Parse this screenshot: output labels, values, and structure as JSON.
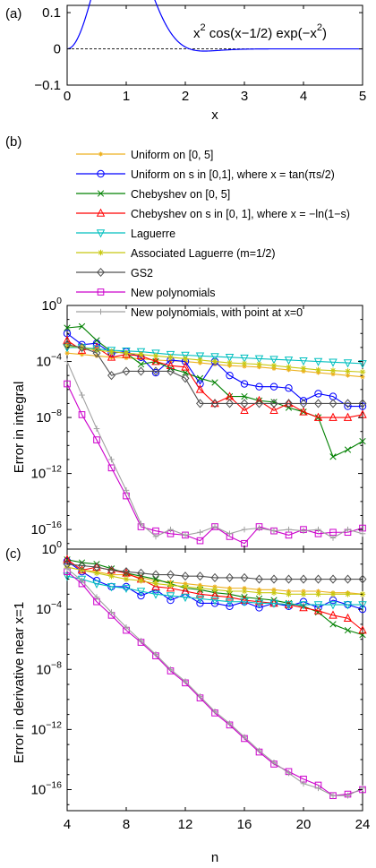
{
  "chart_data": [
    {
      "panel_label": "(a)",
      "type": "line",
      "annotation": {
        "base": "x",
        "exp1": "2",
        "mid": " cos(x−1/2) exp(−x",
        "exp2": "2",
        "end": ")"
      },
      "xlabel": "x",
      "xlim": [
        0,
        5
      ],
      "ylim": [
        -0.1,
        0.12
      ],
      "xticks": [
        "0",
        "1",
        "2",
        "3",
        "4",
        "5"
      ],
      "yticks": [
        "0.1",
        "0",
        "−0.1"
      ],
      "reference_line": {
        "y": 0,
        "style": "dashed"
      },
      "function": "x^2*cos(x-0.5)*exp(-x^2)",
      "color": "#0000ff"
    },
    {
      "panel_label": "(b)",
      "type": "line",
      "yscale": "log",
      "ylabel": "Error in integral",
      "xlim": [
        4,
        24
      ],
      "ylim_exp": [
        -17.4,
        0
      ],
      "ytick_exps": [
        0,
        -4,
        -8,
        -12,
        -16
      ],
      "x": [
        4,
        5,
        6,
        7,
        8,
        9,
        10,
        11,
        12,
        13,
        14,
        15,
        16,
        17,
        18,
        19,
        20,
        21,
        22,
        23,
        24
      ],
      "series_log10": [
        {
          "name": "Uniform on [0, 5]",
          "color": "#edb120",
          "marker": "star",
          "values": [
            -3.4,
            -3.5,
            -3.6,
            -3.7,
            -3.75,
            -3.8,
            -3.9,
            -3.95,
            -4.0,
            -4.1,
            -4.2,
            -4.3,
            -4.35,
            -4.4,
            -4.5,
            -4.6,
            -4.7,
            -4.8,
            -4.9,
            -5.0,
            -5.1
          ]
        },
        {
          "name": "Uniform on s in [0,1], where x = tan(πs/2)",
          "color": "#0000ff",
          "marker": "circle",
          "values": [
            -2.0,
            -2.8,
            -2.7,
            -3.4,
            -3.3,
            -3.7,
            -4.8,
            -3.9,
            -4.0,
            -5.6,
            -4.0,
            -5.0,
            -5.6,
            -5.8,
            -5.8,
            -5.9,
            -6.8,
            -6.3,
            -6.5,
            -7.2,
            -7.2
          ]
        },
        {
          "name": "Chebyshev on [0, 5]",
          "color": "#008000",
          "marker": "x",
          "values": [
            -1.6,
            -1.5,
            -2.5,
            -3.3,
            -3.4,
            -4.2,
            -4.0,
            -4.5,
            -4.8,
            -5.2,
            -5.5,
            -6.5,
            -6.5,
            -6.8,
            -6.9,
            -7.3,
            -7.6,
            -8.0,
            -10.8,
            -10.3,
            -9.7
          ]
        },
        {
          "name": "Chebyshev on s in [0, 1], where x = −ln(1−s)",
          "color": "#ff0000",
          "marker": "triangle",
          "values": [
            -2.5,
            -3.2,
            -3.0,
            -3.7,
            -3.5,
            -3.6,
            -4.0,
            -4.3,
            -4.4,
            -6.0,
            -7.0,
            -6.5,
            -7.5,
            -6.8,
            -7.5,
            -7.0,
            -7.6,
            -8.0,
            -8.0,
            -8.0,
            -7.8
          ]
        },
        {
          "name": "Laguerre",
          "color": "#00bfbf",
          "marker": "triangle-down",
          "values": [
            -3.0,
            -3.0,
            -3.1,
            -3.2,
            -3.25,
            -3.3,
            -3.4,
            -3.5,
            -3.55,
            -3.6,
            -3.65,
            -3.7,
            -3.75,
            -3.8,
            -3.85,
            -3.9,
            -3.95,
            -4.0,
            -4.05,
            -4.1,
            -4.15
          ]
        },
        {
          "name": "Associated Laguerre (m=1/2)",
          "color": "#c8c810",
          "marker": "asterisk",
          "values": [
            -2.9,
            -3.0,
            -3.2,
            -3.3,
            -3.4,
            -3.5,
            -3.6,
            -3.7,
            -3.8,
            -3.9,
            -4.0,
            -4.1,
            -4.15,
            -4.2,
            -4.3,
            -4.4,
            -4.5,
            -4.6,
            -4.65,
            -4.7,
            -4.75
          ]
        },
        {
          "name": "GS2",
          "color": "#505050",
          "marker": "diamond",
          "values": [
            -2.8,
            -3.0,
            -3.4,
            -5.0,
            -4.7,
            -4.7,
            -4.7,
            -4.7,
            -5.2,
            -7.0,
            -7.0,
            -7.0,
            -7.0,
            -7.0,
            -7.0,
            -7.0,
            -7.0,
            -7.0,
            -7.0,
            -7.0,
            -7.0
          ]
        },
        {
          "name": "New polynomials",
          "color": "#cc00cc",
          "marker": "square",
          "values": [
            -5.6,
            -7.8,
            -9.6,
            -11.6,
            -13.6,
            -15.8,
            -16.1,
            -16.3,
            -16.4,
            -16.8,
            -15.8,
            -16.5,
            -17.0,
            -15.8,
            -16.1,
            -16.4,
            -16.0,
            -16.3,
            -16.2,
            -16.2,
            -15.9
          ]
        },
        {
          "name": "New polynomials, with point at x=0",
          "color": "#a0a0a0",
          "marker": "plus",
          "values": [
            -4.0,
            -6.4,
            -8.8,
            -11.0,
            -13.2,
            -15.6,
            -16.5,
            -16.0,
            -16.4,
            -16.2,
            -15.8,
            -16.3,
            -16.0,
            -15.9,
            -16.1,
            -16.0,
            -16.1,
            -16.0,
            -16.6,
            -16.0,
            -16.3
          ]
        }
      ]
    },
    {
      "panel_label": "(c)",
      "type": "line",
      "yscale": "log",
      "ylabel": "Error in derivative near x=1",
      "xlabel": "n",
      "xlim": [
        4,
        24
      ],
      "xticks": [
        "4",
        "8",
        "12",
        "16",
        "20",
        "24"
      ],
      "ylim_exp": [
        -17.4,
        0
      ],
      "ytick_exps": [
        0,
        -4,
        -8,
        -12,
        -16
      ],
      "x": [
        4,
        5,
        6,
        7,
        8,
        9,
        10,
        11,
        12,
        13,
        14,
        15,
        16,
        17,
        18,
        19,
        20,
        21,
        22,
        23,
        24
      ],
      "series_log10": [
        {
          "name": "Uniform on [0, 5]",
          "color": "#edb120",
          "marker": "star",
          "values": [
            -1.2,
            -1.4,
            -1.5,
            -1.7,
            -1.7,
            -1.9,
            -2.1,
            -2.2,
            -2.3,
            -2.4,
            -2.5,
            -2.6,
            -2.6,
            -2.7,
            -2.7,
            -2.8,
            -2.8,
            -2.8,
            -2.9,
            -2.9,
            -3.0
          ]
        },
        {
          "name": "Uniform on s in [0,1], where x = tan(πs/2)",
          "color": "#0000ff",
          "marker": "circle",
          "values": [
            -0.8,
            -1.5,
            -2.1,
            -2.5,
            -2.5,
            -3.1,
            -2.7,
            -3.4,
            -3.0,
            -3.6,
            -3.6,
            -3.8,
            -3.5,
            -3.9,
            -3.6,
            -3.8,
            -3.5,
            -3.9,
            -3.4,
            -3.7,
            -4.0
          ]
        },
        {
          "name": "Chebyshev on [0, 5]",
          "color": "#008000",
          "marker": "x",
          "values": [
            -0.7,
            -0.9,
            -1.0,
            -1.3,
            -1.6,
            -1.8,
            -2.0,
            -2.3,
            -2.6,
            -2.7,
            -2.9,
            -3.0,
            -3.2,
            -3.3,
            -3.4,
            -3.6,
            -3.8,
            -4.2,
            -5.0,
            -5.4,
            -5.7
          ]
        },
        {
          "name": "Chebyshev on s in [0, 1], where x = −ln(1−s)",
          "color": "#ff0000",
          "marker": "triangle",
          "values": [
            -0.7,
            -1.4,
            -1.2,
            -1.4,
            -1.6,
            -2.0,
            -2.5,
            -2.6,
            -2.8,
            -3.0,
            -3.1,
            -3.2,
            -3.4,
            -3.5,
            -3.6,
            -3.7,
            -3.9,
            -4.1,
            -4.4,
            -4.6,
            -5.4
          ]
        },
        {
          "name": "Laguerre",
          "color": "#00bfbf",
          "marker": "triangle-down",
          "values": [
            -1.8,
            -2.0,
            -2.3,
            -2.5,
            -2.6,
            -2.8,
            -3.0,
            -3.1,
            -3.2,
            -3.3,
            -3.4,
            -3.5,
            -3.5,
            -3.6,
            -3.6,
            -3.7,
            -3.7,
            -3.7,
            -3.7,
            -3.7,
            -3.7
          ]
        },
        {
          "name": "Associated Laguerre (m=1/2)",
          "color": "#c8c810",
          "marker": "asterisk",
          "values": [
            -1.2,
            -1.4,
            -1.6,
            -1.8,
            -2.0,
            -2.1,
            -2.3,
            -2.4,
            -2.5,
            -2.6,
            -2.7,
            -2.8,
            -2.8,
            -2.9,
            -2.9,
            -3.0,
            -3.0,
            -3.0,
            -3.0,
            -3.0,
            -3.0
          ]
        },
        {
          "name": "GS2",
          "color": "#505050",
          "marker": "diamond",
          "values": [
            -1.0,
            -1.1,
            -1.2,
            -1.4,
            -1.5,
            -1.6,
            -1.7,
            -1.7,
            -1.8,
            -1.8,
            -1.9,
            -1.9,
            -1.9,
            -2.0,
            -2.0,
            -2.0,
            -2.0,
            -2.0,
            -2.0,
            -2.0,
            -2.0
          ]
        },
        {
          "name": "New polynomials",
          "color": "#cc00cc",
          "marker": "square",
          "values": [
            -1.5,
            -2.3,
            -3.5,
            -4.4,
            -5.4,
            -6.2,
            -7.1,
            -8.1,
            -8.9,
            -9.9,
            -10.9,
            -11.7,
            -12.6,
            -13.5,
            -14.3,
            -14.8,
            -15.3,
            -15.7,
            -16.4,
            -16.3,
            -16.0
          ]
        },
        {
          "name": "New polynomials, with point at x=0",
          "color": "#a0a0a0",
          "marker": "plus",
          "values": [
            -1.3,
            -2.1,
            -3.2,
            -4.2,
            -5.2,
            -6.1,
            -7.0,
            -8.0,
            -8.8,
            -9.8,
            -10.8,
            -11.6,
            -12.5,
            -13.4,
            -14.2,
            -14.9,
            -15.6,
            -15.9,
            -16.4,
            -16.4,
            -15.9
          ]
        }
      ]
    }
  ]
}
